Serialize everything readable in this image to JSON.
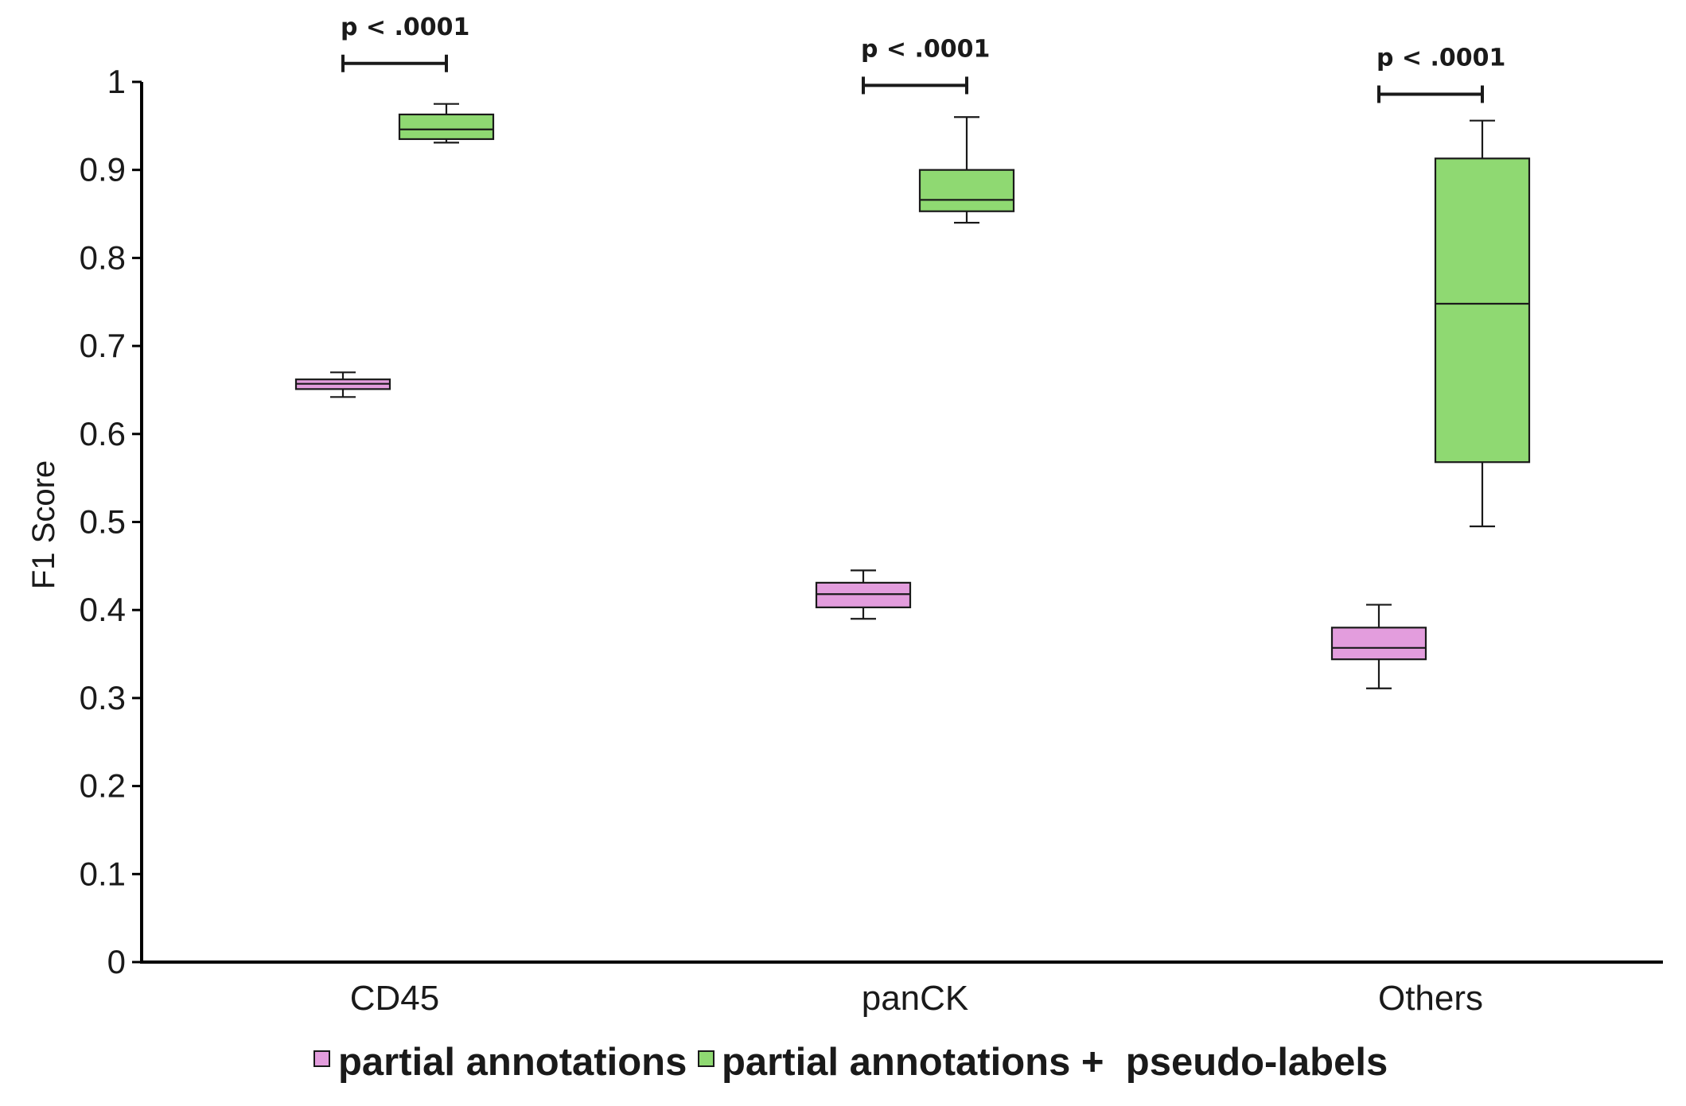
{
  "chart_data": {
    "type": "box",
    "ylabel": "F1 Score",
    "xlabel": "",
    "ylim": [
      0,
      1
    ],
    "yticks": [
      "0",
      "0.1",
      "0.2",
      "0.3",
      "0.4",
      "0.5",
      "0.6",
      "0.7",
      "0.8",
      "0.9",
      "1"
    ],
    "categories": [
      "CD45",
      "panCK",
      "Others"
    ],
    "series": [
      {
        "name": "partial annotations",
        "color": "#e39ddd",
        "boxes": [
          {
            "min": 0.642,
            "q1": 0.651,
            "median": 0.657,
            "q3": 0.662,
            "max": 0.67
          },
          {
            "min": 0.39,
            "q1": 0.403,
            "median": 0.418,
            "q3": 0.431,
            "max": 0.445
          },
          {
            "min": 0.311,
            "q1": 0.344,
            "median": 0.357,
            "q3": 0.38,
            "max": 0.406
          }
        ]
      },
      {
        "name": "partial annotations +  pseudo-labels",
        "color": "#8fd972",
        "boxes": [
          {
            "min": 0.931,
            "q1": 0.935,
            "median": 0.946,
            "q3": 0.963,
            "max": 0.975
          },
          {
            "min": 0.84,
            "q1": 0.853,
            "median": 0.866,
            "q3": 0.9,
            "max": 0.96
          },
          {
            "min": 0.495,
            "q1": 0.568,
            "median": 0.748,
            "q3": 0.913,
            "max": 0.956
          }
        ]
      }
    ],
    "annotations": [
      {
        "category": "CD45",
        "text": "p < .0001",
        "y": 1.021
      },
      {
        "category": "panCK",
        "text": "p < .0001",
        "y": 0.996
      },
      {
        "category": "Others",
        "text": "p < .0001",
        "y": 0.986
      }
    ],
    "grid": false,
    "legend": "bottom"
  }
}
